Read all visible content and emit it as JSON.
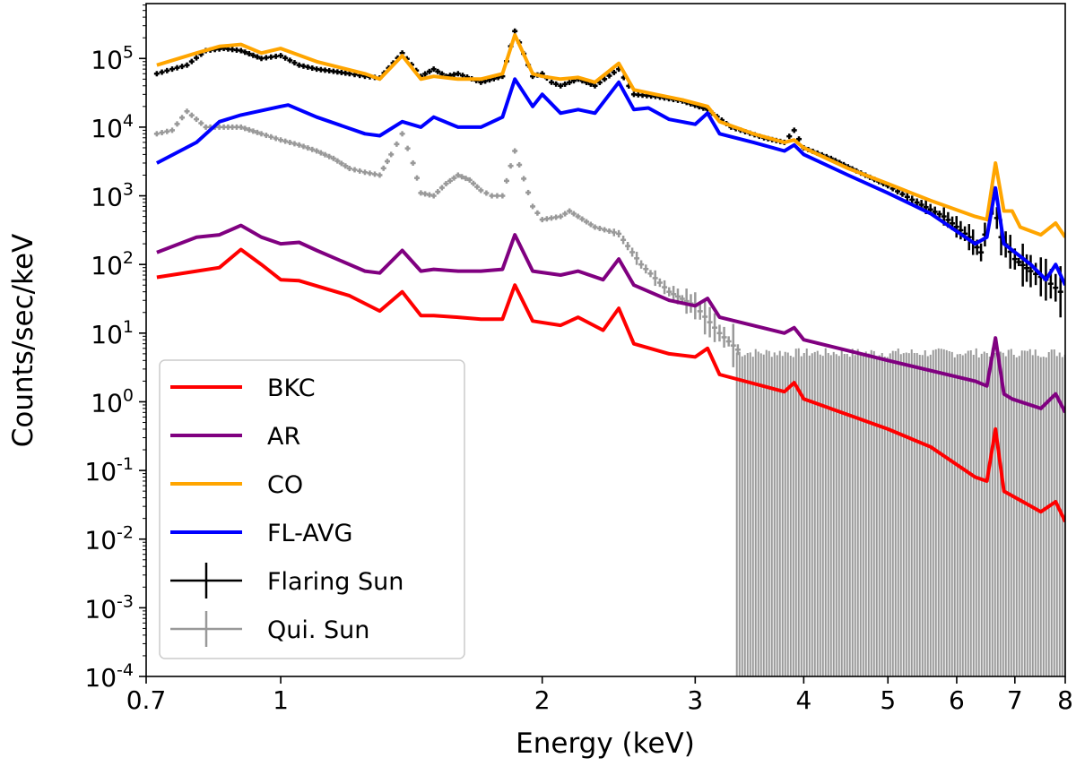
{
  "chart_data": {
    "type": "line",
    "xlabel": "Energy (keV)",
    "ylabel": "Counts/sec/keV",
    "xscale": "log",
    "yscale": "log",
    "xlim": [
      0.7,
      8
    ],
    "ylim": [
      0.0001,
      630000
    ],
    "xticks": [
      0.7,
      1,
      2,
      3,
      4,
      5,
      6,
      7,
      8
    ],
    "xtick_labels": [
      "0.7",
      "1",
      "2",
      "3",
      "4",
      "5",
      "6",
      "7",
      "8"
    ],
    "yticks": [
      0.0001,
      0.001,
      0.01,
      0.1,
      1,
      10,
      100,
      1000,
      10000,
      100000
    ],
    "ytick_exponents": [
      "-4",
      "-3",
      "-2",
      "-1",
      "0",
      "1",
      "2",
      "3",
      "4",
      "5"
    ],
    "ytick_base": "10",
    "grid": false,
    "legend_placement": "lower-left",
    "series": [
      {
        "name": "BKC",
        "style": "line",
        "color": "#ff0000",
        "points": [
          [
            0.72,
            65
          ],
          [
            0.8,
            80
          ],
          [
            0.85,
            90
          ],
          [
            0.9,
            165
          ],
          [
            0.95,
            100
          ],
          [
            1.0,
            60
          ],
          [
            1.05,
            58
          ],
          [
            1.2,
            35
          ],
          [
            1.3,
            21
          ],
          [
            1.38,
            40
          ],
          [
            1.45,
            18
          ],
          [
            1.5,
            18
          ],
          [
            1.6,
            17
          ],
          [
            1.7,
            16
          ],
          [
            1.8,
            16
          ],
          [
            1.86,
            50
          ],
          [
            1.95,
            15
          ],
          [
            2.1,
            13
          ],
          [
            2.2,
            17
          ],
          [
            2.35,
            11
          ],
          [
            2.45,
            23
          ],
          [
            2.55,
            7
          ],
          [
            2.8,
            5
          ],
          [
            3.0,
            4.5
          ],
          [
            3.1,
            6
          ],
          [
            3.2,
            2.5
          ],
          [
            3.8,
            1.4
          ],
          [
            3.9,
            1.9
          ],
          [
            4.0,
            1.1
          ],
          [
            5.0,
            0.4
          ],
          [
            5.6,
            0.22
          ],
          [
            6.3,
            0.08
          ],
          [
            6.5,
            0.07
          ],
          [
            6.65,
            0.4
          ],
          [
            6.8,
            0.05
          ],
          [
            7.5,
            0.025
          ],
          [
            7.8,
            0.035
          ],
          [
            8.0,
            0.018
          ]
        ]
      },
      {
        "name": "AR",
        "style": "line",
        "color": "#800080",
        "points": [
          [
            0.72,
            150
          ],
          [
            0.8,
            250
          ],
          [
            0.85,
            270
          ],
          [
            0.9,
            370
          ],
          [
            0.95,
            250
          ],
          [
            1.0,
            200
          ],
          [
            1.05,
            210
          ],
          [
            1.1,
            160
          ],
          [
            1.25,
            80
          ],
          [
            1.3,
            75
          ],
          [
            1.38,
            160
          ],
          [
            1.45,
            80
          ],
          [
            1.5,
            85
          ],
          [
            1.6,
            80
          ],
          [
            1.7,
            80
          ],
          [
            1.8,
            85
          ],
          [
            1.86,
            270
          ],
          [
            1.95,
            80
          ],
          [
            2.1,
            70
          ],
          [
            2.2,
            80
          ],
          [
            2.35,
            60
          ],
          [
            2.45,
            120
          ],
          [
            2.55,
            50
          ],
          [
            2.8,
            30
          ],
          [
            3.0,
            25
          ],
          [
            3.1,
            32
          ],
          [
            3.2,
            17
          ],
          [
            3.8,
            10
          ],
          [
            3.9,
            12
          ],
          [
            4.0,
            8
          ],
          [
            5.0,
            4
          ],
          [
            6.3,
            2
          ],
          [
            6.5,
            1.7
          ],
          [
            6.65,
            8.5
          ],
          [
            6.8,
            1.3
          ],
          [
            6.95,
            1.1
          ],
          [
            7.5,
            0.8
          ],
          [
            7.8,
            1.3
          ],
          [
            8.0,
            0.7
          ]
        ]
      },
      {
        "name": "CO",
        "style": "line",
        "color": "#ffa500",
        "points": [
          [
            0.72,
            80000
          ],
          [
            0.8,
            120000
          ],
          [
            0.85,
            150000
          ],
          [
            0.9,
            160000
          ],
          [
            0.95,
            120000
          ],
          [
            1.0,
            140000
          ],
          [
            1.1,
            90000
          ],
          [
            1.25,
            60000
          ],
          [
            1.3,
            50000
          ],
          [
            1.38,
            110000
          ],
          [
            1.45,
            50000
          ],
          [
            1.5,
            55000
          ],
          [
            1.6,
            50000
          ],
          [
            1.7,
            50000
          ],
          [
            1.8,
            60000
          ],
          [
            1.86,
            220000
          ],
          [
            1.95,
            60000
          ],
          [
            2.0,
            55000
          ],
          [
            2.1,
            50000
          ],
          [
            2.2,
            53000
          ],
          [
            2.3,
            45000
          ],
          [
            2.45,
            85000
          ],
          [
            2.55,
            35000
          ],
          [
            2.7,
            30000
          ],
          [
            2.9,
            25000
          ],
          [
            3.1,
            20000
          ],
          [
            3.2,
            12000
          ],
          [
            3.5,
            8000
          ],
          [
            3.8,
            6000
          ],
          [
            3.9,
            6500
          ],
          [
            4.0,
            5000
          ],
          [
            4.5,
            2500
          ],
          [
            5.0,
            1500
          ],
          [
            5.6,
            850
          ],
          [
            6.3,
            500
          ],
          [
            6.5,
            450
          ],
          [
            6.65,
            3000
          ],
          [
            6.8,
            600
          ],
          [
            6.95,
            600
          ],
          [
            7.1,
            350
          ],
          [
            7.5,
            270
          ],
          [
            7.8,
            400
          ],
          [
            8.0,
            250
          ]
        ]
      },
      {
        "name": "FL-AVG",
        "style": "line",
        "color": "#0000ff",
        "points": [
          [
            0.72,
            3000
          ],
          [
            0.8,
            6000
          ],
          [
            0.85,
            12000
          ],
          [
            0.9,
            15000
          ],
          [
            1.0,
            20000
          ],
          [
            1.02,
            21000
          ],
          [
            1.1,
            14000
          ],
          [
            1.25,
            8000
          ],
          [
            1.3,
            7500
          ],
          [
            1.38,
            12000
          ],
          [
            1.45,
            10000
          ],
          [
            1.5,
            14000
          ],
          [
            1.6,
            10000
          ],
          [
            1.7,
            10000
          ],
          [
            1.8,
            14000
          ],
          [
            1.86,
            50000
          ],
          [
            1.95,
            20000
          ],
          [
            2.0,
            30000
          ],
          [
            2.1,
            16000
          ],
          [
            2.2,
            18000
          ],
          [
            2.3,
            16000
          ],
          [
            2.45,
            45000
          ],
          [
            2.55,
            18000
          ],
          [
            2.65,
            19000
          ],
          [
            2.8,
            13000
          ],
          [
            3.0,
            11000
          ],
          [
            3.1,
            16000
          ],
          [
            3.2,
            8000
          ],
          [
            3.5,
            6000
          ],
          [
            3.8,
            4500
          ],
          [
            3.9,
            5500
          ],
          [
            4.0,
            4000
          ],
          [
            4.5,
            2000
          ],
          [
            5.0,
            1100
          ],
          [
            5.6,
            550
          ],
          [
            6.3,
            200
          ],
          [
            6.5,
            250
          ],
          [
            6.65,
            1300
          ],
          [
            6.8,
            200
          ],
          [
            7.3,
            100
          ],
          [
            7.6,
            60
          ],
          [
            7.8,
            100
          ],
          [
            8.0,
            50
          ]
        ]
      },
      {
        "name": "Flaring Sun",
        "style": "errorbar",
        "color": "#000000",
        "points": [
          [
            0.72,
            60000
          ],
          [
            0.75,
            70000
          ],
          [
            0.78,
            80000
          ],
          [
            0.82,
            130000
          ],
          [
            0.86,
            140000
          ],
          [
            0.9,
            130000
          ],
          [
            0.95,
            100000
          ],
          [
            1.0,
            110000
          ],
          [
            1.05,
            80000
          ],
          [
            1.1,
            70000
          ],
          [
            1.15,
            65000
          ],
          [
            1.2,
            60000
          ],
          [
            1.25,
            55000
          ],
          [
            1.3,
            52000
          ],
          [
            1.38,
            120000
          ],
          [
            1.45,
            55000
          ],
          [
            1.5,
            70000
          ],
          [
            1.55,
            55000
          ],
          [
            1.6,
            60000
          ],
          [
            1.7,
            45000
          ],
          [
            1.8,
            55000
          ],
          [
            1.86,
            250000
          ],
          [
            1.95,
            55000
          ],
          [
            2.0,
            60000
          ],
          [
            2.05,
            45000
          ],
          [
            2.1,
            40000
          ],
          [
            2.2,
            50000
          ],
          [
            2.3,
            40000
          ],
          [
            2.45,
            70000
          ],
          [
            2.55,
            30000
          ],
          [
            2.7,
            28000
          ],
          [
            2.9,
            24000
          ],
          [
            3.1,
            18000
          ],
          [
            3.3,
            10000
          ],
          [
            3.6,
            7000
          ],
          [
            3.8,
            6000
          ],
          [
            3.9,
            9000
          ],
          [
            4.0,
            5000
          ],
          [
            4.3,
            3500
          ],
          [
            4.6,
            2300
          ],
          [
            5.0,
            1400
          ],
          [
            5.4,
            800
          ],
          [
            5.8,
            500
          ],
          [
            6.2,
            250
          ],
          [
            6.4,
            150
          ],
          [
            6.6,
            900
          ],
          [
            6.75,
            250
          ],
          [
            7.0,
            120
          ],
          [
            7.3,
            80
          ],
          [
            7.6,
            60
          ],
          [
            7.9,
            40
          ],
          [
            8.0,
            30
          ]
        ]
      },
      {
        "name": "Qui. Sun",
        "style": "errorbar",
        "color": "#999999",
        "points": [
          [
            0.72,
            8000
          ],
          [
            0.75,
            9000
          ],
          [
            0.78,
            17000
          ],
          [
            0.82,
            10000
          ],
          [
            0.86,
            10000
          ],
          [
            0.9,
            10000
          ],
          [
            0.95,
            8000
          ],
          [
            1.0,
            6500
          ],
          [
            1.05,
            5500
          ],
          [
            1.1,
            4500
          ],
          [
            1.15,
            3500
          ],
          [
            1.2,
            2500
          ],
          [
            1.25,
            2200
          ],
          [
            1.3,
            2000
          ],
          [
            1.34,
            4000
          ],
          [
            1.38,
            8000
          ],
          [
            1.42,
            3000
          ],
          [
            1.45,
            1100
          ],
          [
            1.5,
            1000
          ],
          [
            1.55,
            1500
          ],
          [
            1.6,
            2000
          ],
          [
            1.65,
            1700
          ],
          [
            1.7,
            1200
          ],
          [
            1.75,
            1000
          ],
          [
            1.8,
            1000
          ],
          [
            1.86,
            4500
          ],
          [
            1.95,
            700
          ],
          [
            2.0,
            450
          ],
          [
            2.1,
            500
          ],
          [
            2.15,
            600
          ],
          [
            2.3,
            350
          ],
          [
            2.45,
            280
          ],
          [
            2.6,
            100
          ],
          [
            2.8,
            40
          ],
          [
            3.0,
            25
          ],
          [
            3.2,
            10
          ],
          [
            3.4,
            5
          ]
        ],
        "upper_limit_region": {
          "energy_range": [
            3.35,
            8
          ],
          "upper": 5.5,
          "lower": 0.0001
        }
      }
    ]
  }
}
